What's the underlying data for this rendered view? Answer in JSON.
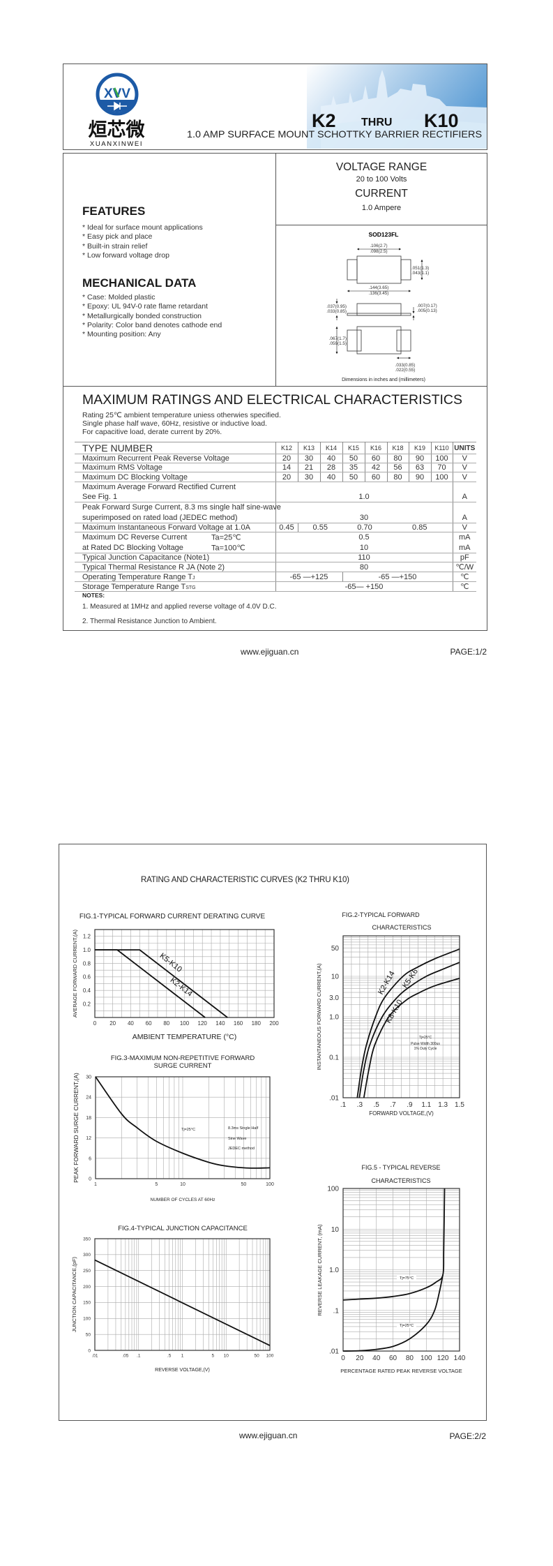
{
  "header": {
    "logo_mark": "XVV",
    "logo_cn": "烜芯微",
    "logo_en": "XUANXINWEI",
    "part_from": "K2",
    "thru": "THRU",
    "part_to": "K10",
    "subtitle": "1.0 AMP SURFACE MOUNT SCHOTTKY BARRIER RECTIFIERS",
    "brand_color": "#1c5aa6",
    "accent_color": "#3aa64a"
  },
  "specs": {
    "voltage_range_label": "VOLTAGE RANGE",
    "voltage_range": "20 to 100 Volts",
    "current_label": "CURRENT",
    "current": "1.0 Ampere"
  },
  "features": {
    "title": "FEATURES",
    "items": [
      "* Ideal for surface mount applications",
      "* Easy pick and place",
      "* Built-in strain relief",
      "* Low forward voltage drop"
    ]
  },
  "mechanical": {
    "title": "MECHANICAL DATA",
    "items": [
      "* Case: Molded plastic",
      "* Epoxy: UL 94V-0 rate flame retardant",
      "* Metallurgically bonded construction",
      "* Polarity: Color band denotes cathode end",
      "* Mounting position: Any"
    ]
  },
  "package": {
    "name": "SOD123FL",
    "dims": {
      "body_len_max": ".106(2.7)",
      "body_len_min": ".098(2.5)",
      "width_max": ".051(1.3)",
      "width_min": ".043(1.1)",
      "total_len_max": ".144(3.65)",
      "total_len_min": ".136(3.45)",
      "height_max": ".037(0.95)",
      "height_min": ".033(0.85)",
      "lead_t_max": ".007(0.17)",
      "lead_t_min": ".005(0.13)",
      "pad_w_max": ".067(1.7)",
      "pad_w_min": ".059(1.5)",
      "pad_l_max": ".033(0.85)",
      "pad_l_min": ".022(0.55)"
    },
    "caption": "Dimensions in inches and (millimeters)"
  },
  "ratings": {
    "title": "MAXIMUM RATINGS AND ELECTRICAL CHARACTERISTICS",
    "conditions": [
      "Rating 25℃ ambient temperature uniess otherwies specified.",
      "Single phase half wave, 60Hz, resistive or inductive load.",
      "For capacitive load, derate current by 20%."
    ],
    "table": {
      "header_label": "TYPE NUMBER",
      "columns": [
        "K12",
        "K13",
        "K14",
        "K15",
        "K16",
        "K18",
        "K19",
        "K110"
      ],
      "units_label": "UNITS",
      "rows": [
        {
          "name": "Maximum Recurrent Peak Reverse Voltage",
          "values": [
            "20",
            "30",
            "40",
            "50",
            "60",
            "80",
            "90",
            "100"
          ],
          "unit": "V"
        },
        {
          "name": "Maximum RMS Voltage",
          "values": [
            "14",
            "21",
            "28",
            "35",
            "42",
            "56",
            "63",
            "70"
          ],
          "unit": "V"
        },
        {
          "name": "Maximum DC Blocking Voltage",
          "values": [
            "20",
            "30",
            "40",
            "50",
            "60",
            "80",
            "90",
            "100"
          ],
          "unit": "V"
        },
        {
          "name_lines": [
            "Maximum Average Forward Rectified Current",
            "See Fig. 1"
          ],
          "value": "1.0",
          "unit": "A"
        },
        {
          "name_lines": [
            "Peak Forward Surge Current, 8.3 ms single half sine-wave",
            "superimposed on rated load (JEDEC method)"
          ],
          "value": "30",
          "unit": "A"
        },
        {
          "name": "Maximum Instantaneous Forward Voltage at 1.0A",
          "values": [
            "0.45",
            "0.55",
            "0.70",
            "0.85"
          ],
          "unit": "V"
        },
        {
          "name_lines": [
            "Maximum DC Reverse Current",
            "at Rated DC Blocking Voltage"
          ],
          "conditions": [
            "Ta=25℃",
            "Ta=100℃"
          ],
          "values": [
            "0.5",
            "10"
          ],
          "units": [
            "mA",
            "mA"
          ]
        },
        {
          "name": "Typical Junction Capacitance (Note1)",
          "value": "110",
          "unit": "pF"
        },
        {
          "name": "Typical Thermal Resistance R  JA (Note 2)",
          "value": "80",
          "unit": "℃/W"
        },
        {
          "name": "Operating Temperature Range T",
          "sub": "J",
          "values": [
            "-65 —+125",
            "-65 —+150"
          ],
          "unit": "℃"
        },
        {
          "name": "Storage Temperature Range T",
          "sub": "STG",
          "value": "-65— +150",
          "unit": "℃"
        }
      ]
    },
    "notes_label": "NOTES:",
    "notes": [
      "1. Measured at 1MHz and applied reverse voltage of 4.0V D.C.",
      "2. Thermal Resistance Junction to Ambient."
    ]
  },
  "page1_footer": {
    "url": "www.ejiguan.cn",
    "page": "PAGE:1/2"
  },
  "page2": {
    "title": "RATING AND CHARACTERISTIC CURVES (K2 THRU K10)"
  },
  "page2_footer": {
    "url": "www.ejiguan.cn",
    "page": "PAGE:2/2"
  },
  "chart_data": [
    {
      "type": "line",
      "title": [
        "FIG.1-TYPICAL FORWARD CURRENT DERATING CURVE"
      ],
      "xlabel": "AMBIENT TEMPERATURE (°C)",
      "ylabel": "AVERAGE FORWARD CURRENT,(A)",
      "xscale": "linear",
      "yscale": "linear",
      "xlim": [
        0,
        200
      ],
      "ylim": [
        0,
        1.3
      ],
      "grid": true,
      "xticks": [
        0,
        20,
        40,
        60,
        80,
        100,
        120,
        140,
        160,
        180,
        200
      ],
      "xtick_labels": [
        "0",
        "20",
        "40",
        "60",
        "80",
        "100",
        "120",
        "140",
        "160",
        "180",
        "200"
      ],
      "yticks": [
        0.2,
        0.4,
        0.6,
        0.8,
        1.0,
        1.2
      ],
      "ytick_labels": [
        "0.2",
        "0.4",
        "0.6",
        "0.8",
        "1.0",
        "1.2"
      ],
      "series": [
        {
          "name": "K5-K10",
          "smooth": false,
          "points": [
            [
              0,
              1.0
            ],
            [
              50,
              1.0
            ],
            [
              148,
              0
            ]
          ]
        },
        {
          "name": "K2-K14",
          "smooth": false,
          "points": [
            [
              0,
              1.0
            ],
            [
              25,
              1.0
            ],
            [
              123,
              0
            ]
          ]
        }
      ],
      "annotations": []
    },
    {
      "type": "line",
      "title": [
        "FIG.2-TYPICAL FORWARD",
        "CHARACTERISTICS"
      ],
      "xlabel": "FORWARD VOLTAGE,(V)",
      "ylabel": "INSTANTANEOUS FORWARD CURRENT,(A)",
      "xscale": "linear",
      "yscale": "log",
      "xlim": [
        0.1,
        1.5
      ],
      "ylim": [
        0.01,
        100
      ],
      "grid": true,
      "xticks": [
        0.1,
        0.3,
        0.5,
        0.7,
        0.9,
        1.1,
        1.3,
        1.5
      ],
      "xtick_labels": [
        ".1",
        ".3",
        ".5",
        ".7",
        ".9",
        "1.1",
        "1.3",
        "1.5"
      ],
      "yticks": [
        0.01,
        0.1,
        1,
        3,
        10,
        50
      ],
      "ytick_labels": [
        ".01",
        "0.1",
        "1.0",
        "3.0",
        "10",
        "50"
      ],
      "series": [
        {
          "name": "K2-K14",
          "smooth": true,
          "points": [
            [
              0.27,
              0.01
            ],
            [
              0.32,
              0.05
            ],
            [
              0.38,
              0.2
            ],
            [
              0.49,
              1
            ],
            [
              0.6,
              3
            ],
            [
              0.82,
              10
            ],
            [
              1.0,
              17
            ],
            [
              1.2,
              27
            ],
            [
              1.5,
              47
            ]
          ]
        },
        {
          "name": "K5-K6",
          "smooth": true,
          "points": [
            [
              0.295,
              0.01
            ],
            [
              0.35,
              0.05
            ],
            [
              0.42,
              0.2
            ],
            [
              0.57,
              1
            ],
            [
              0.75,
              3
            ],
            [
              0.9,
              5.5
            ],
            [
              1.1,
              10
            ],
            [
              1.3,
              15
            ],
            [
              1.5,
              22
            ]
          ]
        },
        {
          "name": "K8-K10",
          "smooth": true,
          "points": [
            [
              0.35,
              0.01
            ],
            [
              0.41,
              0.05
            ],
            [
              0.48,
              0.2
            ],
            [
              0.65,
              1
            ],
            [
              0.85,
              2.5
            ],
            [
              1.0,
              3.8
            ],
            [
              1.2,
              5.8
            ],
            [
              1.5,
              8.9
            ]
          ]
        }
      ],
      "annotations": [
        "Tj=25°C",
        "Pulse Width 300us",
        "1% Duty Cycle"
      ]
    },
    {
      "type": "line",
      "title": [
        "FIG.3-MAXIMUM NON-REPETITIVE FORWARD",
        "SURGE CURRENT"
      ],
      "xlabel": "NUMBER OF CYCLES AT 60Hz",
      "ylabel": "PEAK FORWARD SURGE CURRENT,(A)",
      "xscale": "log",
      "yscale": "linear",
      "xlim": [
        1,
        100
      ],
      "ylim": [
        0,
        30
      ],
      "grid": true,
      "xticks": [
        1,
        5,
        10,
        50,
        100
      ],
      "xtick_labels": [
        "1",
        "5",
        "10",
        "50",
        "100"
      ],
      "yticks": [
        0,
        6,
        12,
        18,
        24,
        30
      ],
      "ytick_labels": [
        "0",
        "6",
        "12",
        "18",
        "24",
        "30"
      ],
      "series": [
        {
          "smooth": true,
          "points": [
            [
              1,
              30
            ],
            [
              2,
              19
            ],
            [
              3,
              15
            ],
            [
              5,
              11
            ],
            [
              10,
              7.5
            ],
            [
              20,
              4.8
            ],
            [
              30,
              3.8
            ],
            [
              50,
              3.2
            ],
            [
              70,
              3.1
            ],
            [
              100,
              3.2
            ]
          ]
        }
      ],
      "annotations": [
        "Tj=25°C",
        "8.3ms Single Half",
        "Sine Wave",
        "JEDEC method"
      ]
    },
    {
      "type": "line",
      "title": [
        "FIG.4-TYPICAL JUNCTION CAPACITANCE"
      ],
      "xlabel": "REVERSE VOLTAGE,(V)",
      "ylabel": "JUNCTION CAPACITANCE,(pF)",
      "xscale": "log",
      "yscale": "linear",
      "xlim": [
        0.01,
        100
      ],
      "ylim": [
        0,
        350
      ],
      "grid": true,
      "xticks": [
        0.01,
        0.05,
        0.1,
        0.5,
        1,
        5,
        10,
        50,
        100
      ],
      "xtick_labels": [
        ".01",
        ".05",
        ".1",
        ".5",
        "1",
        "5",
        "10",
        "50",
        "100"
      ],
      "yticks": [
        0,
        50,
        100,
        150,
        200,
        250,
        300,
        350
      ],
      "ytick_labels": [
        "0",
        "50",
        "100",
        "150",
        "200",
        "250",
        "300",
        "350"
      ],
      "series": [
        {
          "smooth": false,
          "points": [
            [
              0.01,
              283
            ],
            [
              100,
              15
            ]
          ]
        }
      ],
      "annotations": []
    },
    {
      "type": "line",
      "title": [
        "FIG.5 - TYPICAL REVERSE",
        "CHARACTERISTICS"
      ],
      "xlabel": "PERCENTAGE RATED PEAK REVERSE VOLTAGE",
      "ylabel": "REVERSE LEAKAGE CURRENT, (mA)",
      "xscale": "linear",
      "yscale": "log",
      "xlim": [
        0,
        140
      ],
      "ylim": [
        0.01,
        100
      ],
      "grid": true,
      "xticks": [
        0,
        20,
        40,
        60,
        80,
        100,
        120,
        140
      ],
      "xtick_labels": [
        "0",
        "20",
        "40",
        "60",
        "80",
        "100",
        "120",
        "140"
      ],
      "yticks": [
        0.01,
        0.1,
        1,
        10,
        100
      ],
      "ytick_labels": [
        ".01",
        ".1",
        "1.0",
        "10",
        "100"
      ],
      "series": [
        {
          "name": "Tj=75°C",
          "smooth": true,
          "points": [
            [
              0,
              0.18
            ],
            [
              20,
              0.19
            ],
            [
              40,
              0.2
            ],
            [
              60,
              0.22
            ],
            [
              80,
              0.26
            ],
            [
              100,
              0.36
            ],
            [
              112,
              0.5
            ],
            [
              120,
              0.75
            ],
            [
              121,
              3
            ],
            [
              122,
              100
            ]
          ]
        },
        {
          "name": "Tj=25°C",
          "smooth": true,
          "points": [
            [
              0,
              0.01
            ],
            [
              20,
              0.0102
            ],
            [
              40,
              0.011
            ],
            [
              60,
              0.013
            ],
            [
              80,
              0.02
            ],
            [
              100,
              0.045
            ],
            [
              110,
              0.1
            ],
            [
              116,
              0.3
            ],
            [
              120,
              0.75
            ]
          ]
        }
      ],
      "annotations": []
    }
  ]
}
